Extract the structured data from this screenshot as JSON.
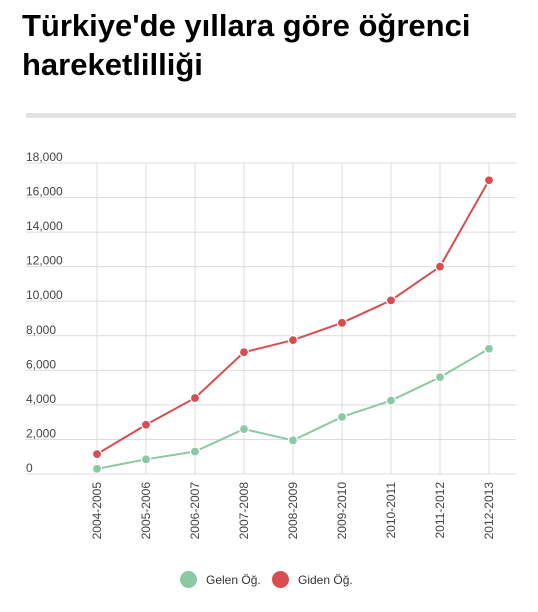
{
  "title": "Türkiye'de yıllara göre öğrenci hareketlilliği",
  "chart_data": {
    "type": "line",
    "categories": [
      "2004-2005",
      "2005-2006",
      "2006-2007",
      "2007-2008",
      "2008-2009",
      "2009-2010",
      "2010-2011",
      "2011-2012",
      "2012-2013"
    ],
    "series": [
      {
        "name": "Gelen Öğ.",
        "color": "#8dc8a5",
        "values": [
          300,
          850,
          1300,
          2600,
          1950,
          3300,
          4250,
          5600,
          7250
        ]
      },
      {
        "name": "Giden Öğ.",
        "color": "#d94c50",
        "values": [
          1150,
          2850,
          4400,
          7050,
          7750,
          8750,
          10050,
          12000,
          17000
        ]
      }
    ],
    "y_ticks": [
      "0",
      "2,000",
      "4,000",
      "6,000",
      "8,000",
      "10,000",
      "12,000",
      "14,000",
      "16,000",
      "18,000"
    ],
    "ylim": [
      0,
      18000
    ],
    "grid": true,
    "legend_position": "bottom"
  }
}
